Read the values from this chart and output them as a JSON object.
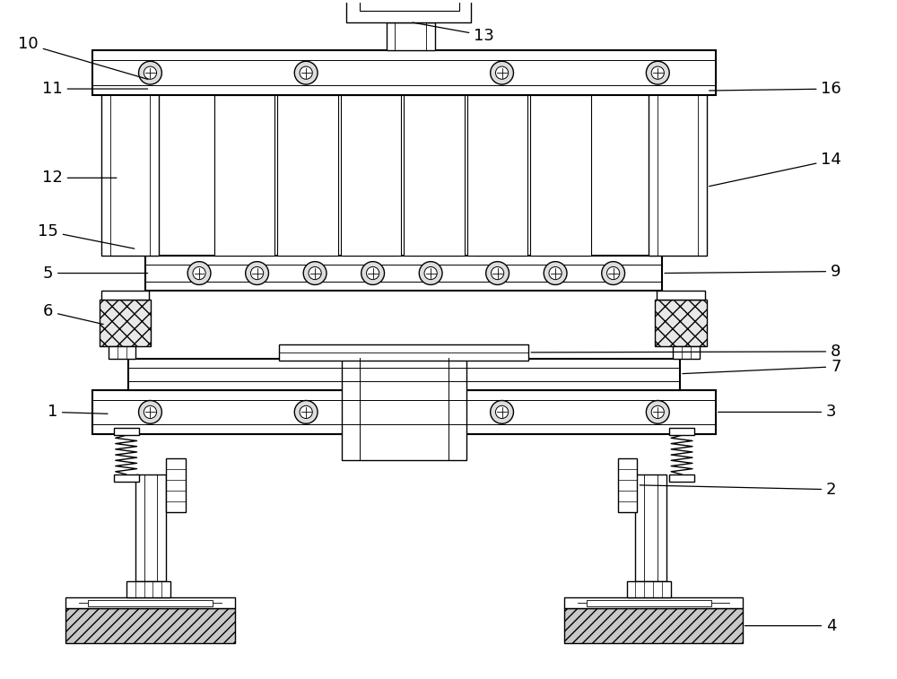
{
  "bg_color": "#ffffff",
  "lw": 1.0,
  "lw2": 1.5,
  "fig_w": 10.0,
  "fig_h": 7.57
}
